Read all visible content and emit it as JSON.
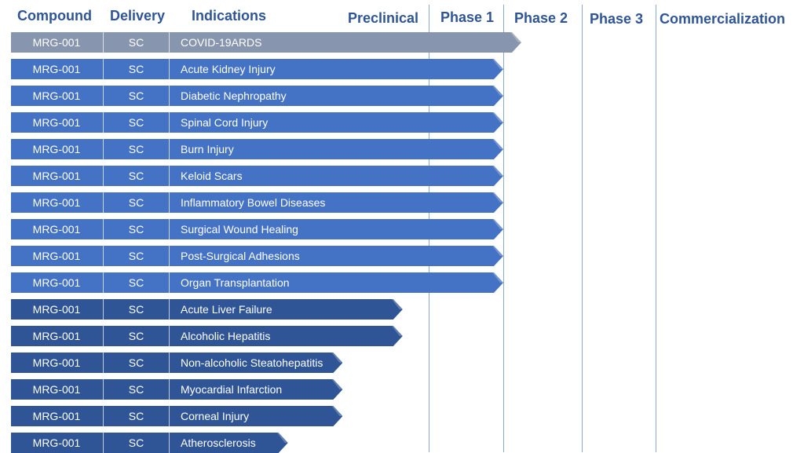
{
  "headers": {
    "compound": "Compound",
    "delivery": "Delivery",
    "indications": "Indications",
    "phases": [
      "Preclinical",
      "Phase 1",
      "Phase 2",
      "Phase 3",
      "Commercialization"
    ]
  },
  "colors": {
    "gray": "#8796ae",
    "medium": "#4472c4",
    "dark": "#2f5597",
    "header": "#2f5597"
  },
  "rows": [
    {
      "compound": "MRG-001",
      "delivery": "SC",
      "indication": "COVID-19ARDS",
      "progress_phase": 2.23,
      "color": "gray"
    },
    {
      "compound": "MRG-001",
      "delivery": "SC",
      "indication": "Acute Kidney Injury",
      "progress_phase": 2.0,
      "color": "medium"
    },
    {
      "compound": "MRG-001",
      "delivery": "SC",
      "indication": "Diabetic Nephropathy",
      "progress_phase": 2.0,
      "color": "medium"
    },
    {
      "compound": "MRG-001",
      "delivery": "SC",
      "indication": "Spinal Cord Injury",
      "progress_phase": 2.0,
      "color": "medium"
    },
    {
      "compound": "MRG-001",
      "delivery": "SC",
      "indication": "Burn Injury",
      "progress_phase": 2.0,
      "color": "medium"
    },
    {
      "compound": "MRG-001",
      "delivery": "SC",
      "indication": "Keloid Scars",
      "progress_phase": 2.0,
      "color": "medium"
    },
    {
      "compound": "MRG-001",
      "delivery": "SC",
      "indication": "Inflammatory Bowel Diseases",
      "progress_phase": 2.0,
      "color": "medium"
    },
    {
      "compound": "MRG-001",
      "delivery": "SC",
      "indication": "Surgical Wound Healing",
      "progress_phase": 2.0,
      "color": "medium"
    },
    {
      "compound": "MRG-001",
      "delivery": "SC",
      "indication": "Post-Surgical Adhesions",
      "progress_phase": 2.0,
      "color": "medium"
    },
    {
      "compound": "MRG-001",
      "delivery": "SC",
      "indication": "Organ Transplantation",
      "progress_phase": 2.0,
      "color": "medium"
    },
    {
      "compound": "MRG-001",
      "delivery": "SC",
      "indication": "Acute Liver Failure",
      "progress_phase": 0.9,
      "color": "dark"
    },
    {
      "compound": "MRG-001",
      "delivery": "SC",
      "indication": "Alcoholic Hepatitis",
      "progress_phase": 0.9,
      "color": "dark"
    },
    {
      "compound": "MRG-001",
      "delivery": "SC",
      "indication": "Non-alcoholic Steatohepatitis",
      "progress_phase": 0.67,
      "color": "dark"
    },
    {
      "compound": "MRG-001",
      "delivery": "SC",
      "indication": "Myocardial Infarction",
      "progress_phase": 0.67,
      "color": "dark"
    },
    {
      "compound": "MRG-001",
      "delivery": "SC",
      "indication": "Corneal Injury",
      "progress_phase": 0.67,
      "color": "dark"
    },
    {
      "compound": "MRG-001",
      "delivery": "SC",
      "indication": "Atherosclerosis",
      "progress_phase": 0.46,
      "color": "dark"
    }
  ]
}
